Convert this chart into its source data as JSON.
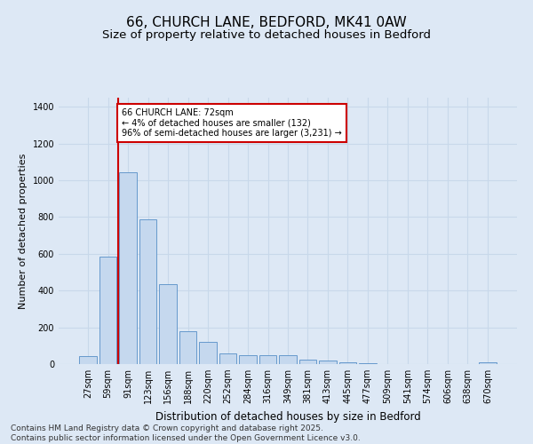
{
  "title": "66, CHURCH LANE, BEDFORD, MK41 0AW",
  "subtitle": "Size of property relative to detached houses in Bedford",
  "xlabel": "Distribution of detached houses by size in Bedford",
  "ylabel": "Number of detached properties",
  "categories": [
    "27sqm",
    "59sqm",
    "91sqm",
    "123sqm",
    "156sqm",
    "188sqm",
    "220sqm",
    "252sqm",
    "284sqm",
    "316sqm",
    "349sqm",
    "381sqm",
    "413sqm",
    "445sqm",
    "477sqm",
    "509sqm",
    "541sqm",
    "574sqm",
    "606sqm",
    "638sqm",
    "670sqm"
  ],
  "values": [
    45,
    585,
    1045,
    790,
    435,
    180,
    120,
    60,
    48,
    48,
    48,
    25,
    18,
    12,
    5,
    0,
    0,
    0,
    0,
    0,
    12
  ],
  "bar_color": "#c5d8ee",
  "bar_edgecolor": "#6699cc",
  "vline_color": "#cc0000",
  "vline_x": 1.5,
  "annotation_text": "66 CHURCH LANE: 72sqm\n← 4% of detached houses are smaller (132)\n96% of semi-detached houses are larger (3,231) →",
  "annotation_box_facecolor": "#ffffff",
  "annotation_box_edgecolor": "#cc0000",
  "ylim": [
    0,
    1450
  ],
  "yticks": [
    0,
    200,
    400,
    600,
    800,
    1000,
    1200,
    1400
  ],
  "background_color": "#dde8f5",
  "grid_color": "#c8d8ea",
  "footer_line1": "Contains HM Land Registry data © Crown copyright and database right 2025.",
  "footer_line2": "Contains public sector information licensed under the Open Government Licence v3.0.",
  "title_fontsize": 11,
  "subtitle_fontsize": 9.5,
  "ylabel_fontsize": 8,
  "xlabel_fontsize": 8.5,
  "tick_fontsize": 7,
  "annotation_fontsize": 7,
  "footer_fontsize": 6.5
}
